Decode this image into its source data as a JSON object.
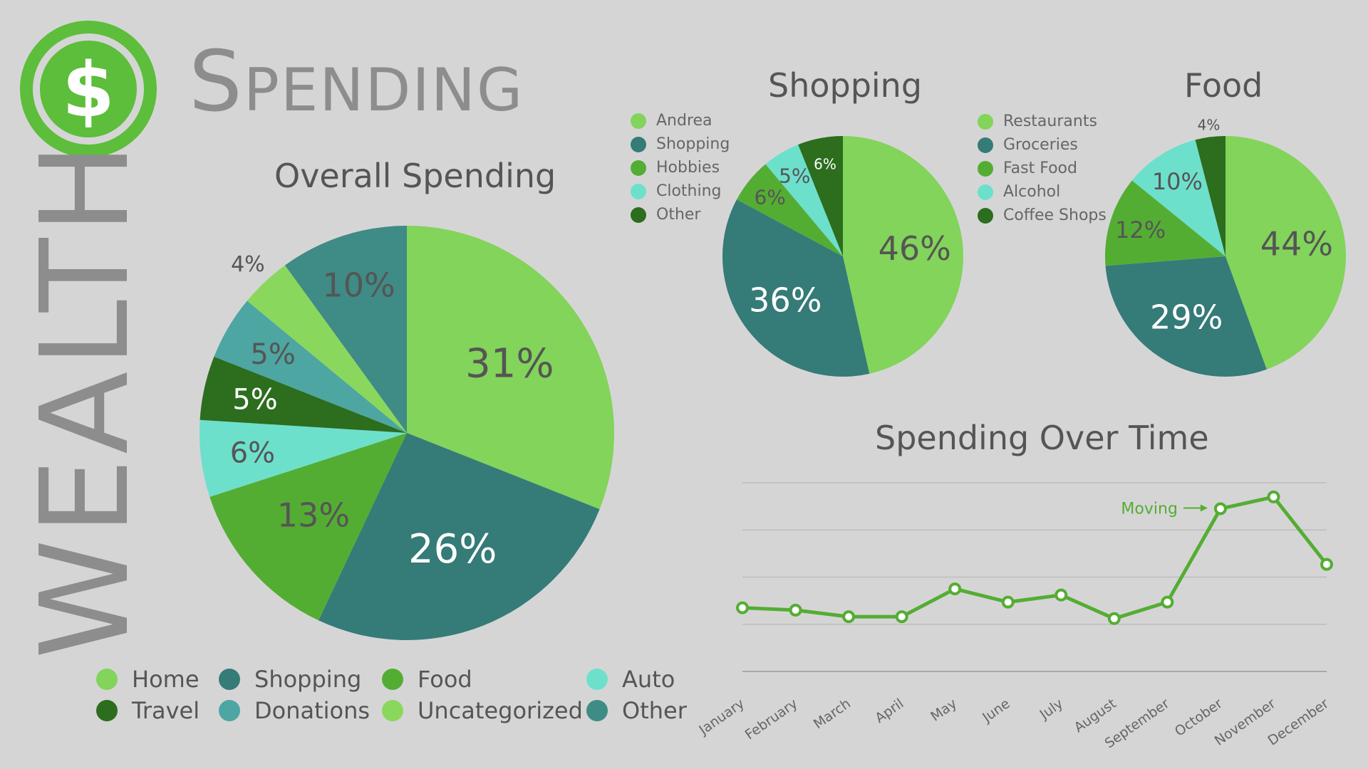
{
  "header": {
    "logo_label": "$",
    "side_title": "WEALTH",
    "title": "Spending"
  },
  "colors": {
    "light_green": "#82d45a",
    "teal_dark": "#357b78",
    "green": "#54ad33",
    "aqua": "#6de0cc",
    "forest": "#2c6d1e",
    "teal_mid": "#4da6a1",
    "pale_green": "#89d85d",
    "teal_other": "#3f8b86"
  },
  "chart_data": [
    {
      "type": "pie",
      "title": "Overall Spending",
      "labels": [
        "Home",
        "Shopping",
        "Food",
        "Auto",
        "Travel",
        "Donations",
        "Uncategorized",
        "Other"
      ],
      "values": [
        31,
        26,
        13,
        6,
        5,
        5,
        4,
        10
      ],
      "value_labels": [
        "31%",
        "26%",
        "13%",
        "6%",
        "5%",
        "5%",
        "4%",
        "10%"
      ],
      "colors": [
        "#82d45a",
        "#357b78",
        "#54ad33",
        "#6de0cc",
        "#2c6d1e",
        "#4da6a1",
        "#89d85d",
        "#3f8b86"
      ],
      "legend_order": [
        "Home",
        "Shopping",
        "Food",
        "Auto",
        "Travel",
        "Donations",
        "Uncategorized",
        "Other"
      ],
      "legend_colors": [
        "#82d45a",
        "#357b78",
        "#54ad33",
        "#6de0cc",
        "#2c6d1e",
        "#4da6a1",
        "#89d85d",
        "#3f8b86"
      ],
      "legend_position": "bottom"
    },
    {
      "type": "pie",
      "title": "Shopping",
      "labels": [
        "Andrea",
        "Shopping",
        "Hobbies",
        "Clothing",
        "Other"
      ],
      "values": [
        46,
        36,
        6,
        5,
        6
      ],
      "value_labels": [
        "46%",
        "36%",
        "6%",
        "5%",
        "6%"
      ],
      "colors": [
        "#82d45a",
        "#357b78",
        "#54ad33",
        "#6de0cc",
        "#2c6d1e"
      ],
      "legend_position": "left"
    },
    {
      "type": "pie",
      "title": "Food",
      "labels": [
        "Restaurants",
        "Groceries",
        "Fast Food",
        "Alcohol",
        "Coffee Shops"
      ],
      "values": [
        44,
        29,
        12,
        10,
        4
      ],
      "value_labels": [
        "44%",
        "29%",
        "12%",
        "10%",
        "4%"
      ],
      "colors": [
        "#82d45a",
        "#357b78",
        "#54ad33",
        "#6de0cc",
        "#2c6d1e"
      ],
      "legend_position": "left"
    },
    {
      "type": "line",
      "title": "Spending Over Time",
      "categories": [
        "January",
        "February",
        "March",
        "April",
        "May",
        "June",
        "July",
        "August",
        "September",
        "October",
        "November",
        "December"
      ],
      "values": [
        1.35,
        1.3,
        1.16,
        1.16,
        1.75,
        1.47,
        1.62,
        1.12,
        1.47,
        3.45,
        3.7,
        2.27
      ],
      "ylim": [
        0,
        4
      ],
      "grid": true,
      "annotation": {
        "text": "Moving",
        "category": "October"
      },
      "color": "#54ad33"
    }
  ]
}
